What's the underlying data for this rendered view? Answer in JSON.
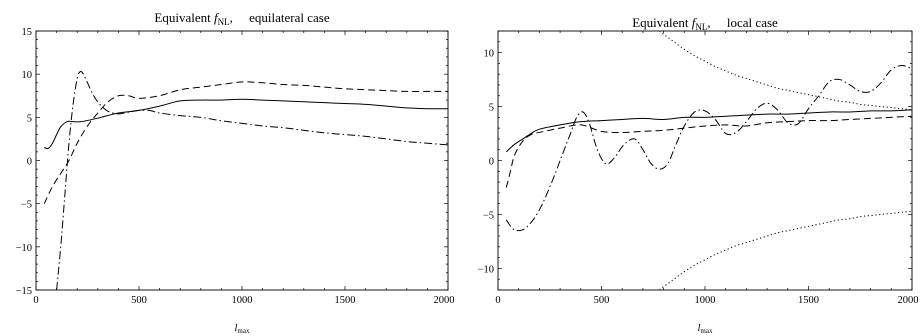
{
  "chart_data": [
    {
      "type": "line",
      "title_prefix": "Equivalent ",
      "title_symbol": "f",
      "title_subscript": "NL",
      "title_suffix": ",     equilateral case",
      "xlabel_main": "l",
      "xlabel_sub": "max",
      "ylabel": "",
      "xlim": [
        0,
        2000
      ],
      "ylim": [
        -15,
        15
      ],
      "xticks": [
        0,
        500,
        1000,
        1500,
        2000
      ],
      "yticks": [
        -15,
        -10,
        -5,
        0,
        5,
        10,
        15
      ],
      "tick_labels_x": [
        "0",
        "500",
        "1000",
        "1500",
        "2000"
      ],
      "tick_labels_y": [
        "−15",
        "−10",
        "−5",
        "0",
        "5",
        "10",
        "15"
      ],
      "grid": false,
      "series": [
        {
          "style": "solid",
          "x": [
            40,
            60,
            80,
            100,
            120,
            150,
            180,
            220,
            300,
            400,
            500,
            600,
            700,
            800,
            900,
            1000,
            1100,
            1200,
            1300,
            1400,
            1500,
            1600,
            1700,
            1800,
            1900,
            2000
          ],
          "y": [
            1.5,
            1.4,
            2.0,
            3.0,
            3.9,
            4.5,
            4.5,
            4.5,
            4.9,
            5.5,
            5.8,
            6.3,
            6.9,
            7.0,
            7.0,
            7.1,
            7.0,
            6.9,
            6.8,
            6.7,
            6.6,
            6.5,
            6.3,
            6.1,
            6.0,
            6.0
          ]
        },
        {
          "style": "dashed",
          "x": [
            40,
            80,
            120,
            160,
            200,
            250,
            300,
            350,
            400,
            450,
            500,
            600,
            700,
            800,
            900,
            1000,
            1100,
            1200,
            1300,
            1400,
            1500,
            1600,
            1700,
            1800,
            1900,
            2000
          ],
          "y": [
            -5,
            -3,
            -1.5,
            0,
            2,
            4,
            5.5,
            6.8,
            7.5,
            7.5,
            7.2,
            7.5,
            8.2,
            8.5,
            8.8,
            9.1,
            9.0,
            8.8,
            8.7,
            8.5,
            8.3,
            8.2,
            8.1,
            8.0,
            8.0,
            8.0
          ]
        },
        {
          "style": "dashdot",
          "x": [
            100,
            120,
            140,
            160,
            180,
            200,
            215,
            230,
            250,
            280,
            310,
            350,
            400,
            450,
            500,
            550,
            600,
            700,
            800,
            900,
            1000,
            1100,
            1200,
            1300,
            1400,
            1500,
            1600,
            1700,
            1800,
            1900,
            2000
          ],
          "y": [
            -15,
            -10,
            -4,
            2,
            6.5,
            9.5,
            10.3,
            10.0,
            9.0,
            7.5,
            6.5,
            5.7,
            5.4,
            5.6,
            5.8,
            5.8,
            5.5,
            5.2,
            5.0,
            4.6,
            4.3,
            4.0,
            3.8,
            3.5,
            3.2,
            3.0,
            2.8,
            2.5,
            2.2,
            2.0,
            1.8
          ]
        }
      ]
    },
    {
      "type": "line",
      "title_prefix": "Equivalent ",
      "title_symbol": "f",
      "title_subscript": "NL",
      "title_suffix": ",     local case",
      "xlabel_main": "l",
      "xlabel_sub": "max",
      "ylabel": "",
      "xlim": [
        0,
        2000
      ],
      "ylim": [
        -12,
        12
      ],
      "xticks": [
        0,
        500,
        1000,
        1500,
        2000
      ],
      "yticks": [
        -10,
        -5,
        0,
        5,
        10
      ],
      "tick_labels_x": [
        "0",
        "500",
        "1000",
        "1500",
        "2000"
      ],
      "tick_labels_y": [
        "−10",
        "−5",
        "0",
        "5",
        "10"
      ],
      "grid": false,
      "series": [
        {
          "style": "solid",
          "x": [
            40,
            80,
            120,
            160,
            200,
            300,
            400,
            500,
            600,
            700,
            800,
            900,
            1000,
            1100,
            1200,
            1300,
            1400,
            1500,
            1600,
            1700,
            1800,
            1900,
            2000
          ],
          "y": [
            0.8,
            1.5,
            2.0,
            2.5,
            2.9,
            3.3,
            3.6,
            3.7,
            3.8,
            3.9,
            3.8,
            4.0,
            4.0,
            4.1,
            4.2,
            4.3,
            4.3,
            4.4,
            4.5,
            4.5,
            4.6,
            4.6,
            4.7
          ]
        },
        {
          "style": "dashed",
          "x": [
            40,
            60,
            80,
            120,
            160,
            200,
            300,
            400,
            500,
            600,
            700,
            800,
            900,
            1000,
            1100,
            1200,
            1300,
            1400,
            1500,
            1600,
            1700,
            1800,
            1900,
            2000
          ],
          "y": [
            -2.5,
            -1.0,
            0.5,
            1.8,
            2.4,
            2.6,
            3.0,
            3.3,
            2.7,
            2.6,
            2.7,
            2.8,
            3.0,
            3.2,
            3.3,
            3.2,
            3.5,
            3.6,
            3.7,
            3.7,
            3.8,
            3.9,
            4.0,
            4.1
          ]
        },
        {
          "style": "dashdot",
          "x": [
            40,
            70,
            100,
            130,
            170,
            210,
            260,
            310,
            350,
            380,
            410,
            440,
            480,
            520,
            560,
            610,
            660,
            700,
            740,
            780,
            820,
            860,
            900,
            950,
            1000,
            1050,
            1100,
            1150,
            1200,
            1250,
            1300,
            1350,
            1400,
            1450,
            1500,
            1550,
            1600,
            1650,
            1700,
            1750,
            1800,
            1850,
            1900,
            1950,
            2000
          ],
          "y": [
            -5.5,
            -6.3,
            -6.5,
            -6.3,
            -5.5,
            -4.2,
            -2.0,
            0.5,
            2.5,
            4.0,
            4.5,
            3.5,
            1.0,
            -0.3,
            0.2,
            1.5,
            2.0,
            1.0,
            -0.3,
            -0.8,
            -0.3,
            1.5,
            3.2,
            4.5,
            4.6,
            3.8,
            2.5,
            2.6,
            3.6,
            4.8,
            5.3,
            4.7,
            3.5,
            3.4,
            4.8,
            6.0,
            7.3,
            7.5,
            7.0,
            6.4,
            6.4,
            7.2,
            8.4,
            8.8,
            8.5
          ]
        },
        {
          "style": "dotted",
          "x": [
            780,
            800,
            850,
            900,
            950,
            1000,
            1050,
            1100,
            1150,
            1200,
            1250,
            1300,
            1350,
            1400,
            1450,
            1500,
            1550,
            1600,
            1650,
            1700,
            1750,
            1800,
            1850,
            1900,
            1950,
            2000
          ],
          "y": [
            12.0,
            11.7,
            11.0,
            10.3,
            9.7,
            9.2,
            8.7,
            8.3,
            7.9,
            7.6,
            7.3,
            7.0,
            6.7,
            6.5,
            6.3,
            6.1,
            5.9,
            5.7,
            5.5,
            5.4,
            5.2,
            5.1,
            5.0,
            4.9,
            4.8,
            4.7
          ]
        },
        {
          "style": "dotted",
          "x": [
            780,
            800,
            850,
            900,
            950,
            1000,
            1050,
            1100,
            1150,
            1200,
            1250,
            1300,
            1350,
            1400,
            1450,
            1500,
            1550,
            1600,
            1650,
            1700,
            1750,
            1800,
            1850,
            1900,
            1950,
            2000
          ],
          "y": [
            -12.0,
            -11.7,
            -11.0,
            -10.3,
            -9.7,
            -9.2,
            -8.7,
            -8.3,
            -7.9,
            -7.6,
            -7.3,
            -7.0,
            -6.7,
            -6.5,
            -6.3,
            -6.1,
            -5.9,
            -5.7,
            -5.5,
            -5.4,
            -5.2,
            -5.1,
            -5.0,
            -4.9,
            -4.8,
            -4.7
          ]
        }
      ]
    }
  ]
}
